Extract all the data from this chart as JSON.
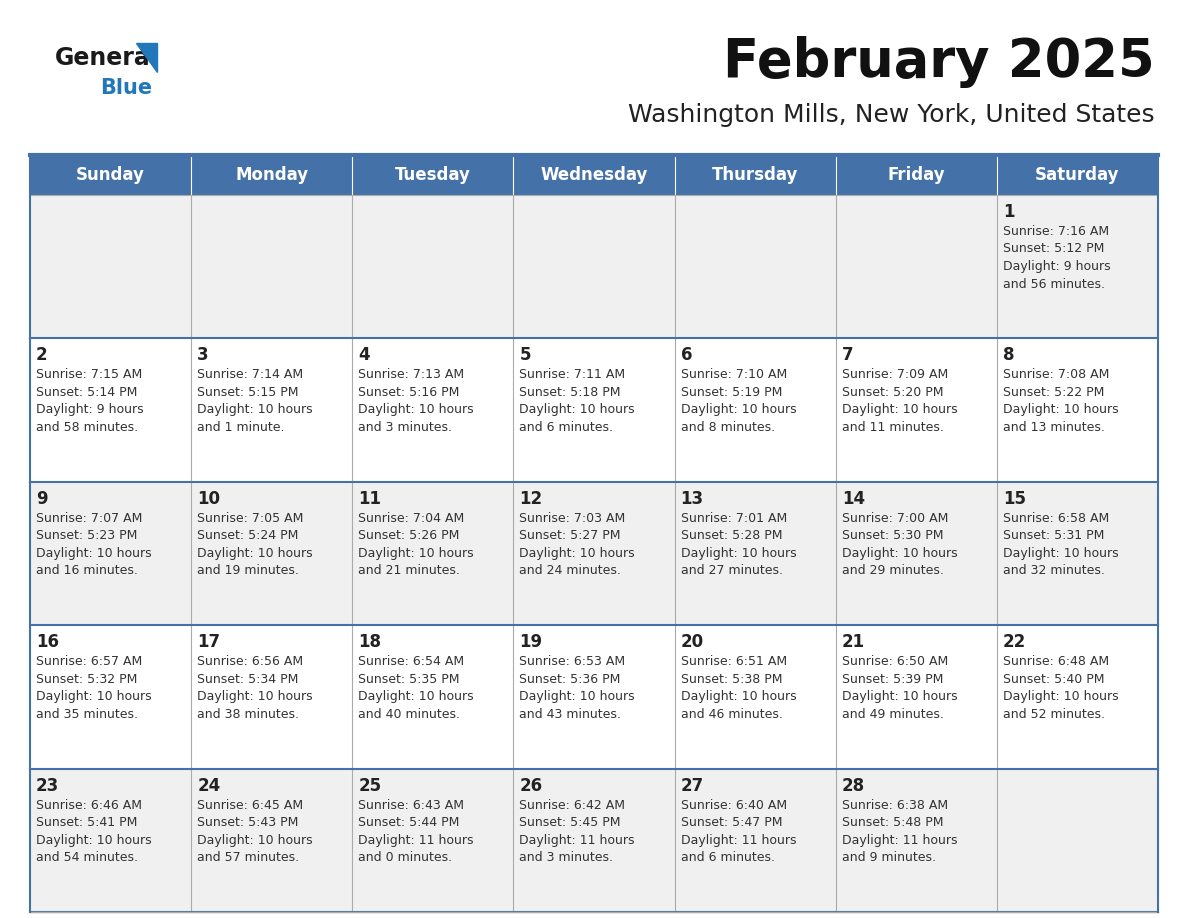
{
  "title": "February 2025",
  "subtitle": "Washington Mills, New York, United States",
  "header_bg": "#4472A8",
  "header_text": "#FFFFFF",
  "row_bg_odd": "#F0F0F0",
  "row_bg_even": "#FFFFFF",
  "day_headers": [
    "Sunday",
    "Monday",
    "Tuesday",
    "Wednesday",
    "Thursday",
    "Friday",
    "Saturday"
  ],
  "cell_border_color": "#4472A8",
  "inner_border_color": "#AAAAAA",
  "day_num_color": "#222222",
  "cell_text_color": "#333333",
  "logo_text_color": "#1a1a1a",
  "logo_blue_color": "#2277BB",
  "logo_triangle_color": "#2277BB",
  "title_color": "#111111",
  "subtitle_color": "#222222",
  "calendar": [
    [
      null,
      null,
      null,
      null,
      null,
      null,
      {
        "day": "1",
        "sunrise": "7:16 AM",
        "sunset": "5:12 PM",
        "daylight_h": "9 hours",
        "daylight_m": "56 minutes."
      }
    ],
    [
      {
        "day": "2",
        "sunrise": "7:15 AM",
        "sunset": "5:14 PM",
        "daylight_h": "9 hours",
        "daylight_m": "58 minutes."
      },
      {
        "day": "3",
        "sunrise": "7:14 AM",
        "sunset": "5:15 PM",
        "daylight_h": "10 hours",
        "daylight_m": "1 minute."
      },
      {
        "day": "4",
        "sunrise": "7:13 AM",
        "sunset": "5:16 PM",
        "daylight_h": "10 hours",
        "daylight_m": "3 minutes."
      },
      {
        "day": "5",
        "sunrise": "7:11 AM",
        "sunset": "5:18 PM",
        "daylight_h": "10 hours",
        "daylight_m": "6 minutes."
      },
      {
        "day": "6",
        "sunrise": "7:10 AM",
        "sunset": "5:19 PM",
        "daylight_h": "10 hours",
        "daylight_m": "8 minutes."
      },
      {
        "day": "7",
        "sunrise": "7:09 AM",
        "sunset": "5:20 PM",
        "daylight_h": "10 hours",
        "daylight_m": "11 minutes."
      },
      {
        "day": "8",
        "sunrise": "7:08 AM",
        "sunset": "5:22 PM",
        "daylight_h": "10 hours",
        "daylight_m": "13 minutes."
      }
    ],
    [
      {
        "day": "9",
        "sunrise": "7:07 AM",
        "sunset": "5:23 PM",
        "daylight_h": "10 hours",
        "daylight_m": "16 minutes."
      },
      {
        "day": "10",
        "sunrise": "7:05 AM",
        "sunset": "5:24 PM",
        "daylight_h": "10 hours",
        "daylight_m": "19 minutes."
      },
      {
        "day": "11",
        "sunrise": "7:04 AM",
        "sunset": "5:26 PM",
        "daylight_h": "10 hours",
        "daylight_m": "21 minutes."
      },
      {
        "day": "12",
        "sunrise": "7:03 AM",
        "sunset": "5:27 PM",
        "daylight_h": "10 hours",
        "daylight_m": "24 minutes."
      },
      {
        "day": "13",
        "sunrise": "7:01 AM",
        "sunset": "5:28 PM",
        "daylight_h": "10 hours",
        "daylight_m": "27 minutes."
      },
      {
        "day": "14",
        "sunrise": "7:00 AM",
        "sunset": "5:30 PM",
        "daylight_h": "10 hours",
        "daylight_m": "29 minutes."
      },
      {
        "day": "15",
        "sunrise": "6:58 AM",
        "sunset": "5:31 PM",
        "daylight_h": "10 hours",
        "daylight_m": "32 minutes."
      }
    ],
    [
      {
        "day": "16",
        "sunrise": "6:57 AM",
        "sunset": "5:32 PM",
        "daylight_h": "10 hours",
        "daylight_m": "35 minutes."
      },
      {
        "day": "17",
        "sunrise": "6:56 AM",
        "sunset": "5:34 PM",
        "daylight_h": "10 hours",
        "daylight_m": "38 minutes."
      },
      {
        "day": "18",
        "sunrise": "6:54 AM",
        "sunset": "5:35 PM",
        "daylight_h": "10 hours",
        "daylight_m": "40 minutes."
      },
      {
        "day": "19",
        "sunrise": "6:53 AM",
        "sunset": "5:36 PM",
        "daylight_h": "10 hours",
        "daylight_m": "43 minutes."
      },
      {
        "day": "20",
        "sunrise": "6:51 AM",
        "sunset": "5:38 PM",
        "daylight_h": "10 hours",
        "daylight_m": "46 minutes."
      },
      {
        "day": "21",
        "sunrise": "6:50 AM",
        "sunset": "5:39 PM",
        "daylight_h": "10 hours",
        "daylight_m": "49 minutes."
      },
      {
        "day": "22",
        "sunrise": "6:48 AM",
        "sunset": "5:40 PM",
        "daylight_h": "10 hours",
        "daylight_m": "52 minutes."
      }
    ],
    [
      {
        "day": "23",
        "sunrise": "6:46 AM",
        "sunset": "5:41 PM",
        "daylight_h": "10 hours",
        "daylight_m": "54 minutes."
      },
      {
        "day": "24",
        "sunrise": "6:45 AM",
        "sunset": "5:43 PM",
        "daylight_h": "10 hours",
        "daylight_m": "57 minutes."
      },
      {
        "day": "25",
        "sunrise": "6:43 AM",
        "sunset": "5:44 PM",
        "daylight_h": "11 hours",
        "daylight_m": "0 minutes."
      },
      {
        "day": "26",
        "sunrise": "6:42 AM",
        "sunset": "5:45 PM",
        "daylight_h": "11 hours",
        "daylight_m": "3 minutes."
      },
      {
        "day": "27",
        "sunrise": "6:40 AM",
        "sunset": "5:47 PM",
        "daylight_h": "11 hours",
        "daylight_m": "6 minutes."
      },
      {
        "day": "28",
        "sunrise": "6:38 AM",
        "sunset": "5:48 PM",
        "daylight_h": "11 hours",
        "daylight_m": "9 minutes."
      },
      null
    ]
  ]
}
